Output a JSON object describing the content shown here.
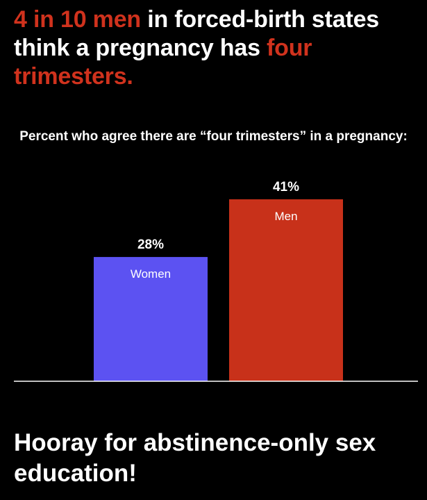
{
  "headline": {
    "part1": "4 in 10 men",
    "part2": " in forced-birth states think a pregnancy has ",
    "part3": "four trimesters."
  },
  "chart_data": {
    "type": "bar",
    "title": "Percent who agree there are “four trimesters” in a pregnancy:",
    "categories": [
      "Women",
      "Men"
    ],
    "values": [
      28,
      41
    ],
    "value_labels": [
      "28%",
      "41%"
    ],
    "colors": [
      "#5c52f2",
      "#c8311a"
    ],
    "ylim": [
      0,
      41
    ],
    "grid": false,
    "legend": "none"
  },
  "footer": {
    "text": "Hooray for abstinence-only sex education!"
  },
  "colors": {
    "background": "#000000",
    "accent_red": "#d0321d",
    "text": "#ffffff"
  }
}
